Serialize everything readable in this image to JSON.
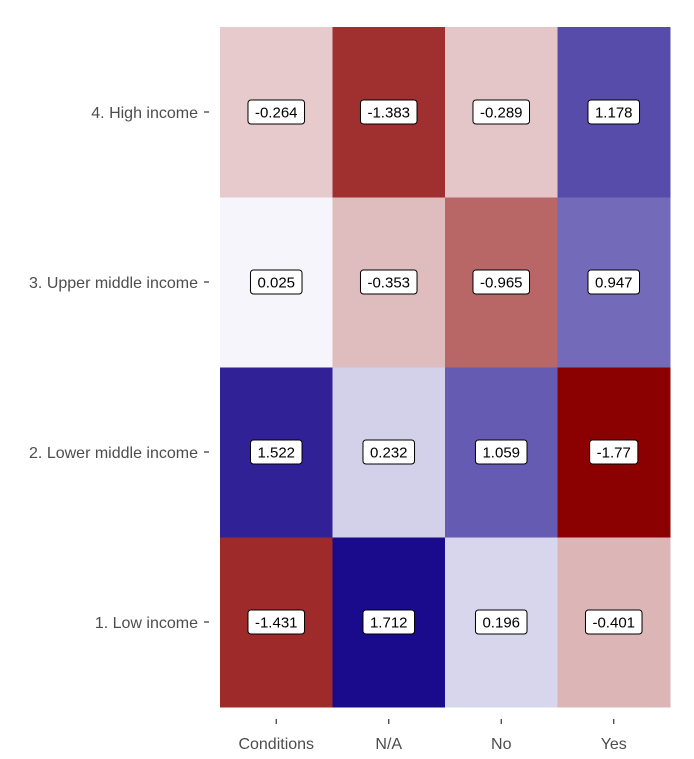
{
  "chart_data": {
    "type": "heatmap",
    "title": "",
    "xlabel": "",
    "ylabel": "",
    "x_categories": [
      "Conditions",
      "N/A",
      "No",
      "Yes"
    ],
    "y_categories": [
      "1. Low income",
      "2. Lower middle income",
      "3. Upper middle income",
      "4. High income"
    ],
    "values": [
      [
        -1.431,
        1.712,
        0.196,
        -0.401
      ],
      [
        1.522,
        0.232,
        1.059,
        -1.77
      ],
      [
        0.025,
        -0.353,
        -0.965,
        0.947
      ],
      [
        -0.264,
        -1.383,
        -0.289,
        1.178
      ]
    ],
    "value_labels": [
      [
        "-1.431",
        "1.712",
        "0.196",
        "-0.401"
      ],
      [
        "1.522",
        "0.232",
        "1.059",
        "-1.77"
      ],
      [
        "0.025",
        "-0.353",
        "-0.965",
        "0.947"
      ],
      [
        "-0.264",
        "-1.383",
        "-0.289",
        "1.178"
      ]
    ],
    "color_scale": {
      "low": "#8b0000",
      "mid": "#fcfcff",
      "high": "#1a0a8c",
      "limits": [
        -1.77,
        1.712
      ]
    },
    "grid": false,
    "legend": "none"
  }
}
